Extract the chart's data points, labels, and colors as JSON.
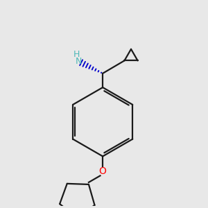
{
  "background_color": "#e8e8e8",
  "line_color": "#1a1a1a",
  "nh_color": "#4db8b8",
  "n_color": "#4db8b8",
  "o_color": "#ff0000",
  "dash_color": "#0000cc",
  "line_width": 1.6,
  "fig_size": [
    3.0,
    3.0
  ],
  "dpi": 100,
  "xlim": [
    2.0,
    8.5
  ],
  "ylim": [
    1.5,
    9.5
  ]
}
